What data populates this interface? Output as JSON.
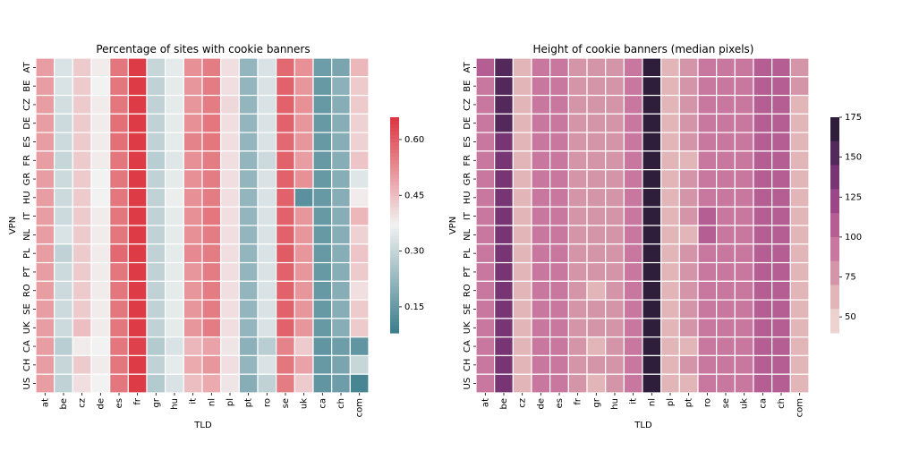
{
  "chart_data": [
    {
      "type": "heatmap",
      "title": "Percentage of sites with cookie banners",
      "xlabel": "TLD",
      "ylabel": "VPN",
      "x_categories": [
        "at",
        "be",
        "cz",
        "de",
        "es",
        "fr",
        "gr",
        "hu",
        "it",
        "nl",
        "pl",
        "pt",
        "ro",
        "se",
        "uk",
        "ca",
        "ch",
        "com"
      ],
      "y_categories": [
        "AT",
        "BE",
        "CZ",
        "DE",
        "ES",
        "FR",
        "GR",
        "HU",
        "IT",
        "NL",
        "PL",
        "PT",
        "RO",
        "SE",
        "UK",
        "CA",
        "CH",
        "US"
      ],
      "colorbar": {
        "ticks": [
          "0.15",
          "0.30",
          "0.45",
          "0.60"
        ],
        "range": [
          0.08,
          0.66
        ],
        "colormap": "diverging teal-white-red",
        "low_color": "#3b7d8c",
        "mid_color": "#f2f2f2",
        "high_color": "#dc3440"
      },
      "values": [
        [
          0.5,
          0.33,
          0.43,
          0.38,
          0.56,
          0.65,
          0.3,
          0.35,
          0.52,
          0.55,
          0.4,
          0.22,
          0.33,
          0.58,
          0.52,
          0.16,
          0.18,
          0.46
        ],
        [
          0.5,
          0.33,
          0.43,
          0.37,
          0.56,
          0.65,
          0.29,
          0.35,
          0.51,
          0.55,
          0.4,
          0.22,
          0.33,
          0.59,
          0.51,
          0.15,
          0.21,
          0.43
        ],
        [
          0.5,
          0.32,
          0.43,
          0.38,
          0.56,
          0.65,
          0.29,
          0.35,
          0.51,
          0.55,
          0.41,
          0.22,
          0.33,
          0.59,
          0.52,
          0.15,
          0.2,
          0.43
        ],
        [
          0.5,
          0.31,
          0.43,
          0.38,
          0.57,
          0.65,
          0.29,
          0.35,
          0.52,
          0.56,
          0.4,
          0.22,
          0.33,
          0.59,
          0.51,
          0.15,
          0.2,
          0.42
        ],
        [
          0.5,
          0.31,
          0.43,
          0.38,
          0.57,
          0.65,
          0.29,
          0.35,
          0.54,
          0.56,
          0.4,
          0.22,
          0.33,
          0.58,
          0.51,
          0.15,
          0.2,
          0.42
        ],
        [
          0.5,
          0.3,
          0.43,
          0.38,
          0.56,
          0.65,
          0.28,
          0.34,
          0.52,
          0.55,
          0.4,
          0.22,
          0.31,
          0.59,
          0.5,
          0.15,
          0.2,
          0.44
        ],
        [
          0.5,
          0.31,
          0.43,
          0.37,
          0.56,
          0.65,
          0.29,
          0.35,
          0.52,
          0.55,
          0.4,
          0.22,
          0.33,
          0.59,
          0.52,
          0.15,
          0.2,
          0.34
        ],
        [
          0.5,
          0.31,
          0.43,
          0.37,
          0.56,
          0.65,
          0.29,
          0.36,
          0.52,
          0.55,
          0.4,
          0.22,
          0.33,
          0.59,
          0.13,
          0.15,
          0.2,
          0.38
        ],
        [
          0.5,
          0.31,
          0.43,
          0.38,
          0.56,
          0.65,
          0.29,
          0.35,
          0.52,
          0.56,
          0.4,
          0.22,
          0.33,
          0.59,
          0.51,
          0.15,
          0.2,
          0.46
        ],
        [
          0.5,
          0.33,
          0.43,
          0.38,
          0.56,
          0.65,
          0.29,
          0.35,
          0.52,
          0.55,
          0.4,
          0.22,
          0.33,
          0.59,
          0.51,
          0.15,
          0.2,
          0.42
        ],
        [
          0.5,
          0.29,
          0.43,
          0.38,
          0.58,
          0.65,
          0.29,
          0.35,
          0.53,
          0.55,
          0.4,
          0.22,
          0.33,
          0.6,
          0.51,
          0.15,
          0.2,
          0.44
        ],
        [
          0.5,
          0.31,
          0.43,
          0.38,
          0.56,
          0.65,
          0.29,
          0.35,
          0.51,
          0.55,
          0.4,
          0.22,
          0.33,
          0.59,
          0.51,
          0.15,
          0.2,
          0.43
        ],
        [
          0.5,
          0.31,
          0.43,
          0.38,
          0.56,
          0.65,
          0.29,
          0.35,
          0.51,
          0.55,
          0.4,
          0.22,
          0.33,
          0.59,
          0.51,
          0.15,
          0.2,
          0.4
        ],
        [
          0.5,
          0.31,
          0.43,
          0.38,
          0.56,
          0.65,
          0.29,
          0.35,
          0.51,
          0.55,
          0.4,
          0.22,
          0.33,
          0.59,
          0.51,
          0.15,
          0.2,
          0.43
        ],
        [
          0.5,
          0.31,
          0.45,
          0.38,
          0.56,
          0.65,
          0.29,
          0.35,
          0.51,
          0.55,
          0.4,
          0.22,
          0.33,
          0.59,
          0.51,
          0.15,
          0.2,
          0.43
        ],
        [
          0.5,
          0.28,
          0.38,
          0.37,
          0.56,
          0.64,
          0.27,
          0.33,
          0.46,
          0.49,
          0.39,
          0.21,
          0.28,
          0.54,
          0.43,
          0.14,
          0.16,
          0.14
        ],
        [
          0.5,
          0.3,
          0.43,
          0.38,
          0.56,
          0.65,
          0.29,
          0.35,
          0.48,
          0.51,
          0.4,
          0.22,
          0.33,
          0.56,
          0.49,
          0.15,
          0.18,
          0.3
        ],
        [
          0.5,
          0.29,
          0.4,
          0.37,
          0.56,
          0.65,
          0.27,
          0.33,
          0.45,
          0.48,
          0.39,
          0.2,
          0.29,
          0.55,
          0.43,
          0.14,
          0.16,
          0.1
        ]
      ]
    },
    {
      "type": "heatmap",
      "title": "Height of cookie banners (median pixels)",
      "xlabel": "TLD",
      "ylabel": "VPN",
      "x_categories": [
        "at",
        "be",
        "cz",
        "de",
        "es",
        "fr",
        "gr",
        "hu",
        "it",
        "nl",
        "pl",
        "pt",
        "ro",
        "se",
        "uk",
        "ca",
        "ch",
        "com"
      ],
      "y_categories": [
        "AT",
        "BE",
        "CZ",
        "DE",
        "ES",
        "FR",
        "GR",
        "HU",
        "IT",
        "NL",
        "PL",
        "PT",
        "RO",
        "SE",
        "UK",
        "CA",
        "CH",
        "US"
      ],
      "colorbar": {
        "ticks": [
          "50",
          "75",
          "100",
          "125",
          "150",
          "175"
        ],
        "range": [
          40,
          175
        ],
        "bins": 9,
        "colors": [
          "#ecd3d0",
          "#e2b6b8",
          "#d595a9",
          "#c8789e",
          "#b55e93",
          "#9a4687",
          "#773673",
          "#53285a",
          "#2e1d3b"
        ]
      },
      "values": [
        [
          100,
          145,
          60,
          90,
          90,
          80,
          75,
          80,
          90,
          180,
          60,
          80,
          90,
          90,
          90,
          100,
          100,
          70
        ],
        [
          95,
          145,
          60,
          90,
          90,
          80,
          70,
          80,
          90,
          180,
          60,
          70,
          90,
          90,
          90,
          100,
          100,
          70
        ],
        [
          95,
          145,
          55,
          85,
          85,
          80,
          70,
          70,
          85,
          180,
          65,
          70,
          85,
          85,
          85,
          100,
          100,
          60
        ],
        [
          95,
          145,
          60,
          85,
          85,
          80,
          70,
          80,
          90,
          180,
          60,
          70,
          90,
          85,
          85,
          100,
          100,
          65
        ],
        [
          95,
          140,
          60,
          85,
          85,
          80,
          70,
          80,
          90,
          180,
          60,
          70,
          90,
          90,
          90,
          100,
          100,
          60
        ],
        [
          95,
          140,
          55,
          85,
          85,
          80,
          70,
          75,
          85,
          180,
          55,
          60,
          85,
          85,
          85,
          100,
          100,
          65
        ],
        [
          95,
          140,
          55,
          85,
          85,
          80,
          70,
          75,
          85,
          180,
          60,
          70,
          85,
          85,
          85,
          100,
          100,
          65
        ],
        [
          95,
          140,
          60,
          85,
          85,
          80,
          70,
          80,
          90,
          180,
          60,
          70,
          90,
          85,
          90,
          100,
          100,
          65
        ],
        [
          95,
          140,
          60,
          85,
          85,
          80,
          70,
          80,
          90,
          180,
          60,
          70,
          110,
          85,
          85,
          100,
          100,
          60
        ],
        [
          95,
          140,
          55,
          85,
          85,
          80,
          70,
          75,
          85,
          180,
          55,
          55,
          105,
          85,
          85,
          100,
          100,
          60
        ],
        [
          95,
          140,
          55,
          85,
          85,
          80,
          70,
          80,
          90,
          180,
          60,
          70,
          85,
          85,
          85,
          100,
          100,
          65
        ],
        [
          95,
          140,
          60,
          85,
          85,
          80,
          70,
          80,
          90,
          180,
          60,
          70,
          85,
          85,
          85,
          100,
          100,
          60
        ],
        [
          95,
          140,
          60,
          85,
          85,
          80,
          65,
          75,
          85,
          180,
          60,
          70,
          85,
          85,
          85,
          100,
          100,
          60
        ],
        [
          95,
          140,
          60,
          85,
          85,
          80,
          70,
          80,
          90,
          180,
          60,
          70,
          85,
          85,
          85,
          100,
          100,
          60
        ],
        [
          95,
          140,
          60,
          85,
          85,
          80,
          70,
          80,
          90,
          180,
          60,
          70,
          90,
          90,
          90,
          100,
          100,
          65
        ],
        [
          95,
          140,
          60,
          85,
          85,
          80,
          65,
          75,
          85,
          180,
          60,
          60,
          85,
          85,
          85,
          100,
          100,
          60
        ],
        [
          95,
          140,
          60,
          85,
          85,
          80,
          70,
          80,
          90,
          180,
          60,
          70,
          85,
          85,
          85,
          100,
          100,
          65
        ],
        [
          95,
          140,
          60,
          85,
          85,
          80,
          65,
          75,
          85,
          180,
          60,
          60,
          85,
          85,
          85,
          100,
          100,
          60
        ]
      ]
    }
  ]
}
